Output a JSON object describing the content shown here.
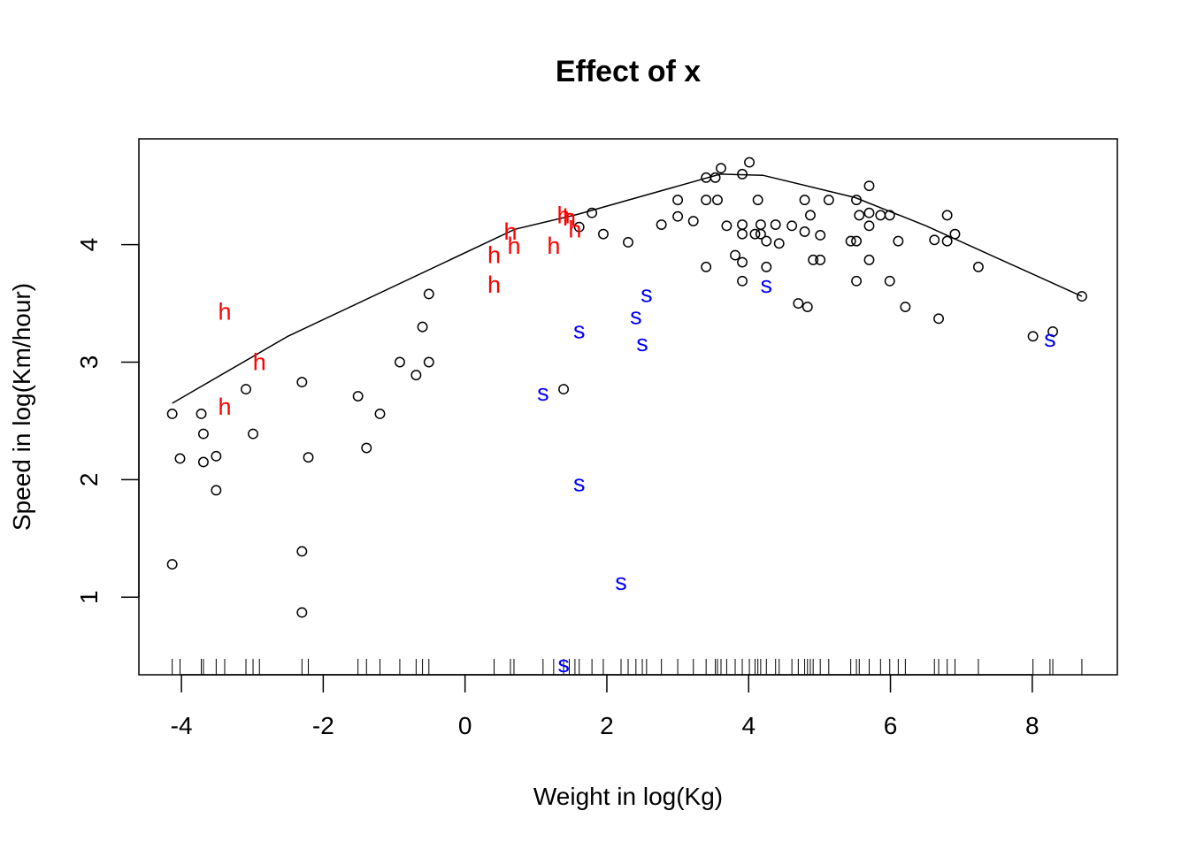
{
  "chart_data": {
    "type": "scatter",
    "title": "Effect of  x",
    "xlabel": "Weight in log(Kg)",
    "ylabel": "Speed in log(Km/hour)",
    "xlim": [
      -4.6,
      9.2
    ],
    "ylim": [
      0.34,
      4.9
    ],
    "xticks": [
      -4,
      -2,
      0,
      2,
      4,
      6,
      8
    ],
    "yticks": [
      1,
      2,
      3,
      4
    ],
    "grid": false,
    "colors": {
      "points": "#000000",
      "h": "#ff0000",
      "s": "#0000ff",
      "line": "#000000"
    },
    "series": [
      {
        "kind": "points",
        "symbol": "circle",
        "points": [
          [
            -4.13,
            2.56
          ],
          [
            -4.02,
            2.18
          ],
          [
            -3.72,
            2.56
          ],
          [
            -3.69,
            2.39
          ],
          [
            -3.69,
            2.15
          ],
          [
            -3.51,
            2.2
          ],
          [
            -3.51,
            1.91
          ],
          [
            -3.09,
            2.77
          ],
          [
            -2.99,
            2.39
          ],
          [
            -2.3,
            2.83
          ],
          [
            -2.21,
            2.19
          ],
          [
            -4.13,
            1.28
          ],
          [
            -2.3,
            1.39
          ],
          [
            -2.3,
            0.87
          ],
          [
            -1.51,
            2.71
          ],
          [
            -1.39,
            2.27
          ],
          [
            -1.2,
            2.56
          ],
          [
            -0.92,
            3.0
          ],
          [
            -0.69,
            2.89
          ],
          [
            -0.6,
            3.3
          ],
          [
            -0.51,
            3.58
          ],
          [
            -0.51,
            3.0
          ],
          [
            1.39,
            2.77
          ],
          [
            1.61,
            4.15
          ],
          [
            1.79,
            4.27
          ],
          [
            1.95,
            4.09
          ],
          [
            2.3,
            4.02
          ],
          [
            2.77,
            4.17
          ],
          [
            3.0,
            4.38
          ],
          [
            3.0,
            4.24
          ],
          [
            3.22,
            4.2
          ],
          [
            3.4,
            4.57
          ],
          [
            3.4,
            4.38
          ],
          [
            3.4,
            3.81
          ],
          [
            3.53,
            4.57
          ],
          [
            3.56,
            4.38
          ],
          [
            3.61,
            4.65
          ],
          [
            3.69,
            4.16
          ],
          [
            3.81,
            3.91
          ],
          [
            3.91,
            4.6
          ],
          [
            3.91,
            4.17
          ],
          [
            3.91,
            4.09
          ],
          [
            3.91,
            3.85
          ],
          [
            3.91,
            3.69
          ],
          [
            4.01,
            4.7
          ],
          [
            4.09,
            4.09
          ],
          [
            4.13,
            4.38
          ],
          [
            4.17,
            4.17
          ],
          [
            4.17,
            4.09
          ],
          [
            4.25,
            4.03
          ],
          [
            4.25,
            3.81
          ],
          [
            4.38,
            4.17
          ],
          [
            4.43,
            4.01
          ],
          [
            4.61,
            4.16
          ],
          [
            4.7,
            3.5
          ],
          [
            4.79,
            4.38
          ],
          [
            4.79,
            4.11
          ],
          [
            4.83,
            3.47
          ],
          [
            4.87,
            4.25
          ],
          [
            4.91,
            3.87
          ],
          [
            5.01,
            4.08
          ],
          [
            5.01,
            3.87
          ],
          [
            5.13,
            4.38
          ],
          [
            5.44,
            4.03
          ],
          [
            5.52,
            4.38
          ],
          [
            5.52,
            4.03
          ],
          [
            5.52,
            3.69
          ],
          [
            5.56,
            4.25
          ],
          [
            5.7,
            4.5
          ],
          [
            5.7,
            4.27
          ],
          [
            5.7,
            4.16
          ],
          [
            5.7,
            3.87
          ],
          [
            5.86,
            4.25
          ],
          [
            5.99,
            4.25
          ],
          [
            5.99,
            3.69
          ],
          [
            6.11,
            4.03
          ],
          [
            6.21,
            3.47
          ],
          [
            6.62,
            4.04
          ],
          [
            6.68,
            3.37
          ],
          [
            6.8,
            4.25
          ],
          [
            6.8,
            4.03
          ],
          [
            6.91,
            4.09
          ],
          [
            7.24,
            3.81
          ],
          [
            8.01,
            3.22
          ],
          [
            8.29,
            3.26
          ],
          [
            8.7,
            3.56
          ]
        ]
      },
      {
        "kind": "letters",
        "symbol": "h",
        "points": [
          [
            -3.39,
            3.43
          ],
          [
            -2.9,
            3.0
          ],
          [
            -3.39,
            2.62
          ],
          [
            0.41,
            3.91
          ],
          [
            0.41,
            3.66
          ],
          [
            0.64,
            4.11
          ],
          [
            0.69,
            3.99
          ],
          [
            1.25,
            3.99
          ],
          [
            1.39,
            4.25
          ],
          [
            1.47,
            4.23
          ],
          [
            1.55,
            4.13
          ]
        ]
      },
      {
        "kind": "letters",
        "symbol": "s",
        "points": [
          [
            1.1,
            2.74
          ],
          [
            1.61,
            3.27
          ],
          [
            2.41,
            3.39
          ],
          [
            2.5,
            3.16
          ],
          [
            2.56,
            3.58
          ],
          [
            1.61,
            1.97
          ],
          [
            2.2,
            1.13
          ],
          [
            1.39,
            0.43
          ],
          [
            4.25,
            3.66
          ],
          [
            8.25,
            3.2
          ]
        ]
      },
      {
        "kind": "line",
        "points": [
          [
            -4.13,
            2.65
          ],
          [
            -2.5,
            3.22
          ],
          [
            0.7,
            4.13
          ],
          [
            1.6,
            4.26
          ],
          [
            3.6,
            4.6
          ],
          [
            4.2,
            4.59
          ],
          [
            5.5,
            4.4
          ],
          [
            6.5,
            4.16
          ],
          [
            8.7,
            3.56
          ]
        ]
      }
    ],
    "rug": [
      -4.13,
      -4.02,
      -3.72,
      -3.69,
      -3.51,
      -3.39,
      -3.09,
      -2.99,
      -2.9,
      -2.3,
      -2.21,
      -1.51,
      -1.39,
      -1.2,
      -0.92,
      -0.69,
      -0.6,
      -0.51,
      0.41,
      0.64,
      0.69,
      1.1,
      1.25,
      1.39,
      1.47,
      1.55,
      1.61,
      1.79,
      1.95,
      2.2,
      2.3,
      2.41,
      2.5,
      2.56,
      2.77,
      3.0,
      3.22,
      3.4,
      3.53,
      3.56,
      3.61,
      3.69,
      3.81,
      3.91,
      4.01,
      4.09,
      4.13,
      4.17,
      4.25,
      4.38,
      4.43,
      4.61,
      4.7,
      4.79,
      4.83,
      4.87,
      4.91,
      5.01,
      5.13,
      5.44,
      5.52,
      5.56,
      5.7,
      5.86,
      5.99,
      6.11,
      6.21,
      6.62,
      6.68,
      6.8,
      6.91,
      7.24,
      8.01,
      8.25,
      8.29,
      8.7
    ]
  }
}
